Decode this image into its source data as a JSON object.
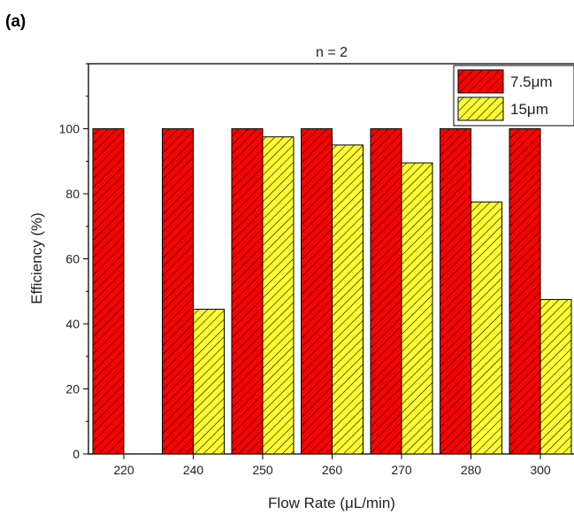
{
  "panel_label": "(a)",
  "chart_data": {
    "type": "bar",
    "title": "n = 2",
    "xlabel": "Flow Rate (μL/min)",
    "ylabel": "Efficiency (%)",
    "categories": [
      "220",
      "240",
      "250",
      "260",
      "270",
      "280",
      "300"
    ],
    "ylim": [
      0,
      120
    ],
    "yticks": [
      0,
      20,
      40,
      60,
      80,
      100
    ],
    "grid": false,
    "legend_position": "top-right",
    "series": [
      {
        "name": "7.5μm",
        "color": "#ff0000",
        "values": [
          100,
          100,
          100,
          100,
          100,
          100,
          100
        ]
      },
      {
        "name": "15μm",
        "color": "#ffff33",
        "values": [
          null,
          44.5,
          97.5,
          95,
          89.5,
          77.5,
          47.5
        ]
      }
    ]
  }
}
